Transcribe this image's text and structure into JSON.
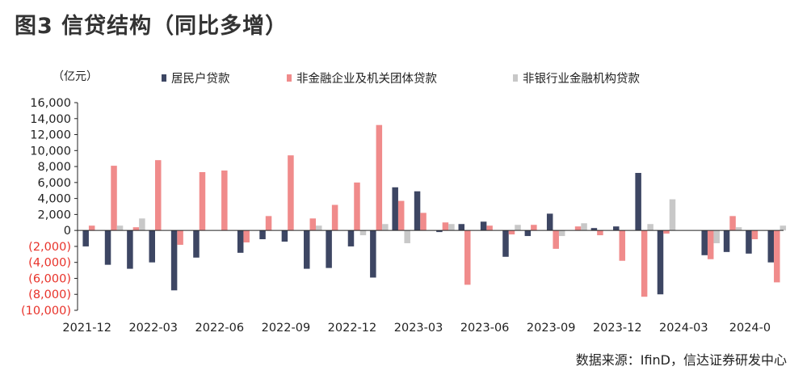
{
  "title": "图3  信贷结构（同比多增）",
  "unit": "（亿元）",
  "source": "数据来源：IfinD，信达证券研发中心",
  "colors": {
    "household": "#3d4663",
    "enterprise": "#f08b8b",
    "nonbank": "#c8c8c8",
    "negative_tick": "#e8322a"
  },
  "chart_data": {
    "type": "bar",
    "ylim": [
      -10000,
      16000
    ],
    "yticks": [
      16000,
      14000,
      12000,
      10000,
      8000,
      6000,
      4000,
      2000,
      0,
      -2000,
      -4000,
      -6000,
      -8000,
      -10000
    ],
    "ytick_labels": [
      "16,000",
      "14,000",
      "12,000",
      "10,000",
      "8,000",
      "6,000",
      "4,000",
      "2,000",
      "0",
      "(2,000)",
      "(4,000)",
      "(6,000)",
      "(8,000)",
      "(10,000)"
    ],
    "xtick_labels": [
      "2021-12",
      "2022-03",
      "2022-06",
      "2022-09",
      "2022-12",
      "2023-03",
      "2023-06",
      "2023-09",
      "2023-12",
      "2024-03",
      "2024-0"
    ],
    "xtick_every": 3,
    "grid": false,
    "legend_position": "top",
    "series": [
      {
        "name": "居民户贷款",
        "values": [
          -2000,
          -4300,
          -4800,
          -4000,
          -7500,
          -3400,
          0,
          -2800,
          -1100,
          -1400,
          -4800,
          -4700,
          -2000,
          -5900,
          5400,
          4900,
          -200,
          800,
          1100,
          -3300,
          -700,
          2100,
          0,
          300,
          500,
          7200,
          -8000,
          0,
          -3100,
          -2700,
          -2900,
          -4000
        ]
      },
      {
        "name": "非金融企业及机关团体贷款",
        "values": [
          600,
          8100,
          400,
          8800,
          -1800,
          7300,
          7500,
          -1500,
          1800,
          9400,
          1500,
          3200,
          6000,
          13200,
          3700,
          2200,
          1000,
          -6800,
          600,
          -500,
          700,
          -2300,
          500,
          -600,
          -3800,
          -8300,
          -400,
          0,
          -3600,
          1800,
          -1100,
          -6500
        ]
      },
      {
        "name": "非银行业金融机构贷款",
        "values": [
          0,
          600,
          1500,
          0,
          0,
          0,
          0,
          0,
          0,
          0,
          600,
          0,
          -600,
          800,
          -1600,
          0,
          800,
          0,
          0,
          700,
          0,
          -700,
          900,
          0,
          0,
          800,
          3900,
          0,
          -1600,
          400,
          0,
          600
        ]
      }
    ]
  }
}
